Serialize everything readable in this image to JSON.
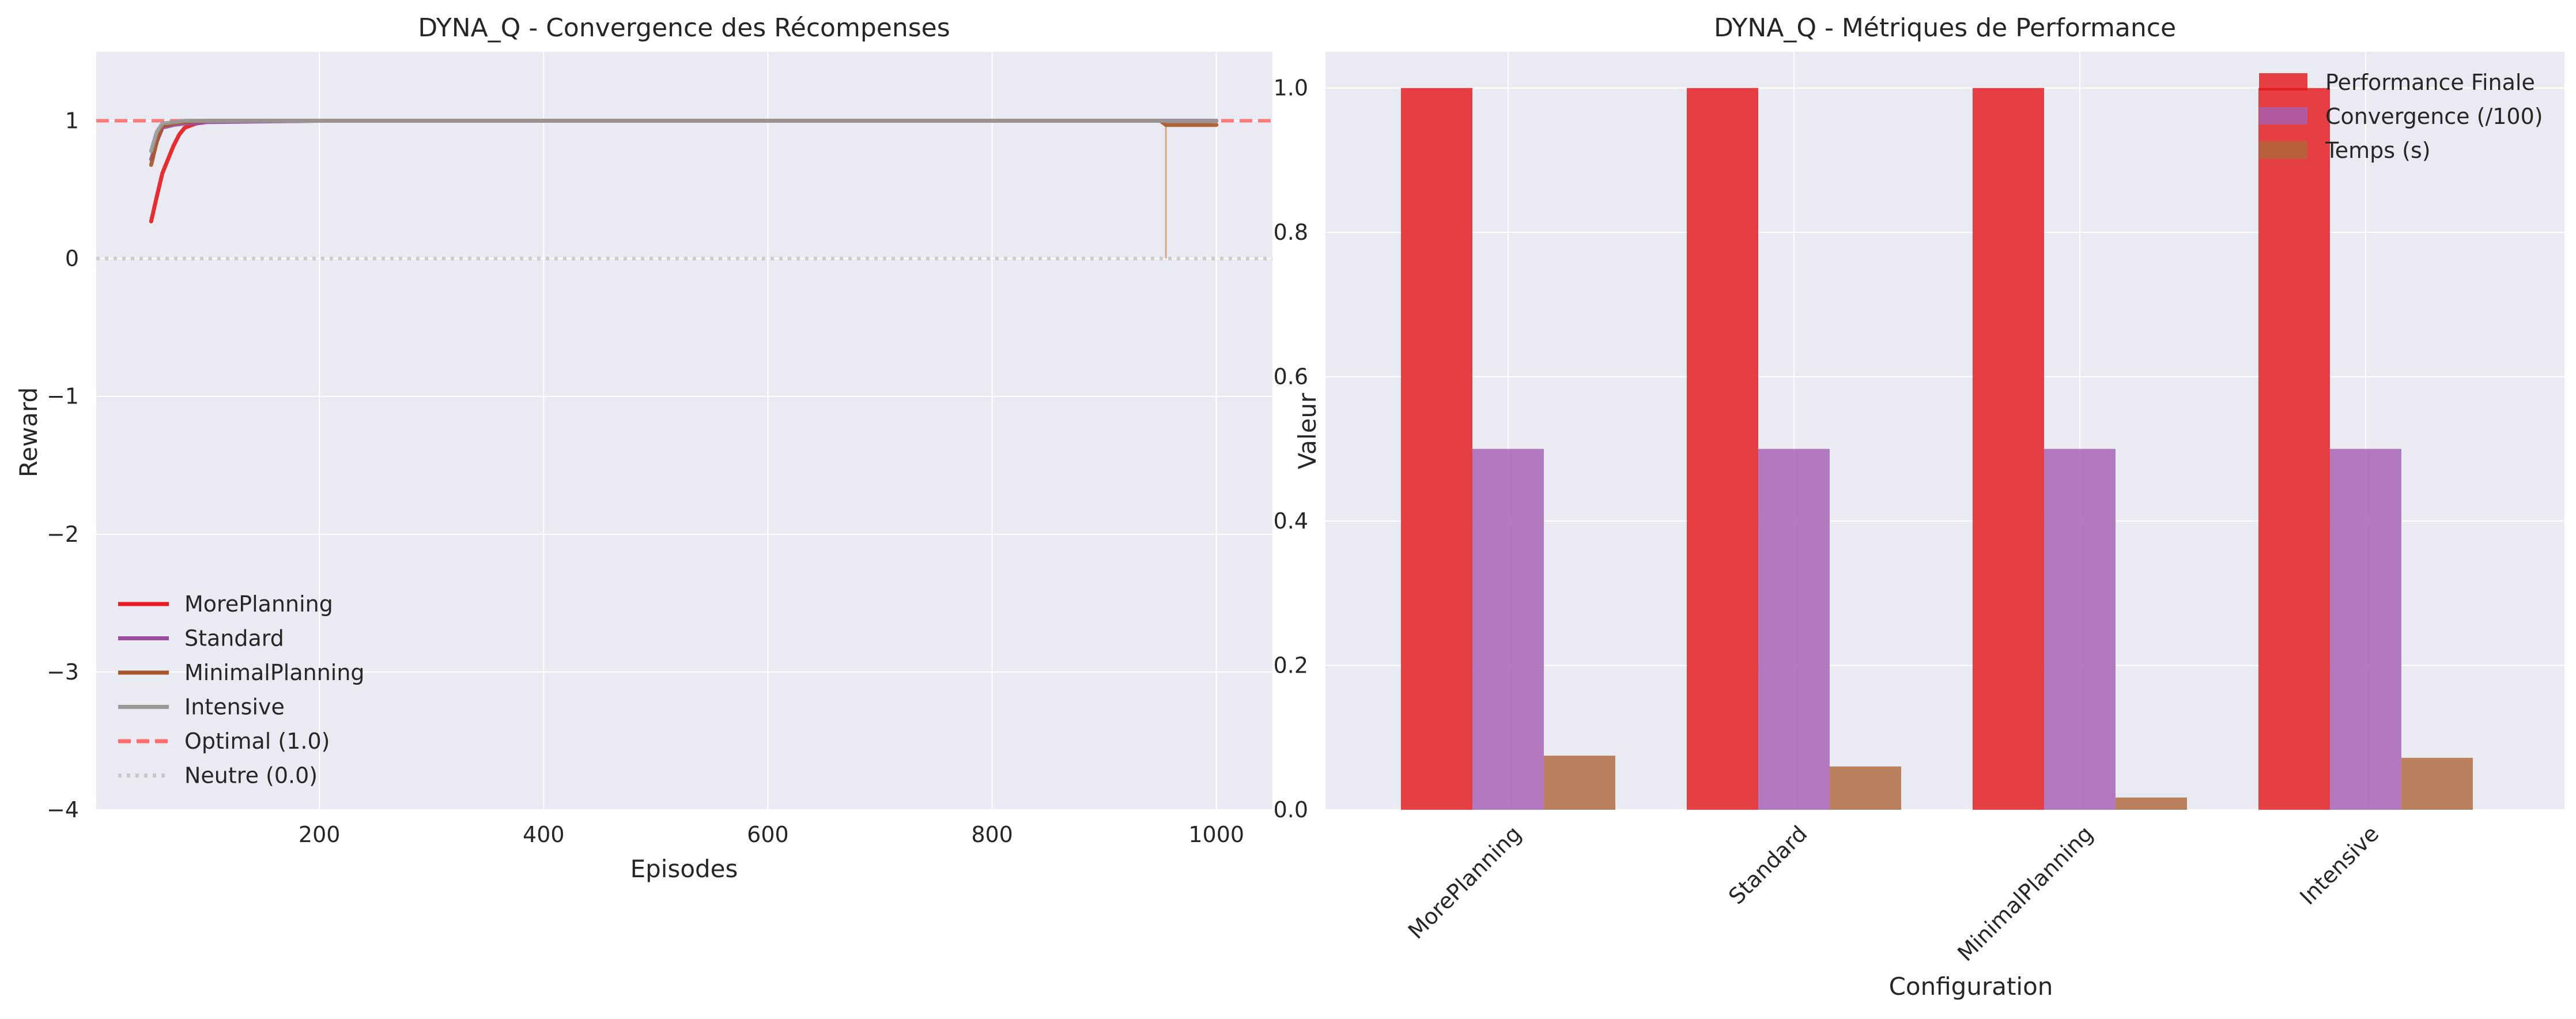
{
  "chart_data": [
    {
      "type": "line",
      "title": "DYNA_Q - Convergence des Récompenses",
      "xlabel": "Episodes",
      "ylabel": "Reward",
      "xlim": [
        1,
        1050
      ],
      "ylim": [
        -4,
        1.5
      ],
      "xticks": [
        200,
        400,
        600,
        800,
        1000
      ],
      "yticks": [
        -4,
        -3,
        -2,
        -1,
        0,
        1
      ],
      "grid": true,
      "legend_position": "lower-left",
      "series": [
        {
          "name": "MorePlanning",
          "color": "#e41a1c",
          "x": [
            50,
            55,
            60,
            65,
            70,
            75,
            80,
            90,
            100,
            200,
            400,
            600,
            800,
            1000
          ],
          "y": [
            0.27,
            0.45,
            0.62,
            0.72,
            0.82,
            0.9,
            0.95,
            0.98,
            1.0,
            1.0,
            1.0,
            1.0,
            1.0,
            1.0
          ]
        },
        {
          "name": "Standard",
          "color": "#984ea3",
          "x": [
            50,
            55,
            60,
            70,
            80,
            90,
            100,
            200,
            400,
            600,
            800,
            1000
          ],
          "y": [
            0.72,
            0.85,
            0.95,
            0.97,
            0.98,
            0.98,
            0.99,
            1.0,
            1.0,
            1.0,
            1.0,
            1.0
          ]
        },
        {
          "name": "MinimalPlanning",
          "color": "#a65628",
          "x": [
            50,
            55,
            60,
            70,
            80,
            100,
            200,
            400,
            600,
            800,
            950,
            955,
            960,
            980,
            1000
          ],
          "y": [
            0.68,
            0.85,
            0.96,
            0.98,
            0.99,
            1.0,
            1.0,
            1.0,
            1.0,
            1.0,
            1.0,
            0.97,
            0.97,
            0.97,
            0.97
          ]
        },
        {
          "name": "Intensive",
          "color": "#999999",
          "x": [
            50,
            55,
            60,
            70,
            80,
            100,
            200,
            400,
            600,
            800,
            1000
          ],
          "y": [
            0.78,
            0.92,
            0.98,
            0.99,
            1.0,
            1.0,
            1.0,
            1.0,
            1.0,
            1.0,
            1.0
          ]
        }
      ],
      "reference_lines": [
        {
          "name": "Optimal (1.0)",
          "y": 1.0,
          "color": "#ff6b6b",
          "style": "dashed"
        },
        {
          "name": "Neutre (0.0)",
          "y": 0.0,
          "color": "#c8c8c8",
          "style": "dotted"
        }
      ],
      "annotations": [
        {
          "type": "vertical-spike",
          "x": 955,
          "y_from": 0.0,
          "y_to": 1.0,
          "color": "#d9a88a"
        }
      ]
    },
    {
      "type": "bar",
      "title": "DYNA_Q - Métriques de Performance",
      "xlabel": "Configuration",
      "ylabel": "Valeur",
      "ylim": [
        0,
        1.05
      ],
      "yticks": [
        0.0,
        0.2,
        0.4,
        0.6,
        0.8,
        1.0
      ],
      "grid": true,
      "legend_position": "top-right",
      "categories": [
        "MorePlanning",
        "Standard",
        "MinimalPlanning",
        "Intensive"
      ],
      "series": [
        {
          "name": "Performance Finale",
          "color": "#e41a1c",
          "values": [
            1.0,
            1.0,
            1.0,
            1.0
          ]
        },
        {
          "name": "Convergence (/100)",
          "color": "#a65fb5",
          "values": [
            0.5,
            0.5,
            0.5,
            0.5
          ]
        },
        {
          "name": "Temps (s)",
          "color": "#b0683a",
          "values": [
            0.075,
            0.06,
            0.017,
            0.072
          ]
        }
      ]
    }
  ]
}
